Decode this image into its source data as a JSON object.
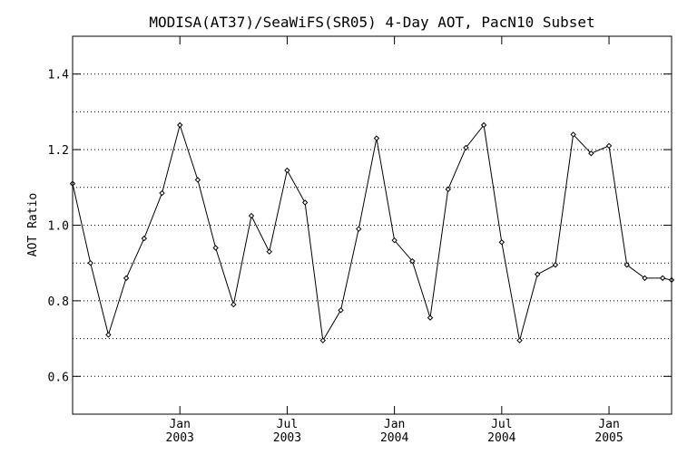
{
  "chart_data": {
    "type": "line",
    "title": "MODISA(AT37)/SeaWiFS(SR05) 4-Day AOT, PacN10 Subset",
    "ylabel": "AOT Ratio",
    "xlabel": "",
    "ylim": [
      0.5,
      1.5
    ],
    "xlim": [
      2002.2,
      2005.55
    ],
    "yticks": [
      {
        "v": 0.6,
        "label": "0.6"
      },
      {
        "v": 0.8,
        "label": "0.8"
      },
      {
        "v": 1.0,
        "label": "1.0"
      },
      {
        "v": 1.2,
        "label": "1.2"
      },
      {
        "v": 1.4,
        "label": "1.4"
      }
    ],
    "grid_values": [
      0.6,
      0.7,
      0.8,
      0.9,
      1.0,
      1.1,
      1.2,
      1.3,
      1.4
    ],
    "xticks": [
      {
        "x": 2002.8,
        "month": "Jan",
        "year": "2003"
      },
      {
        "x": 2003.4,
        "month": "Jul",
        "year": "2003"
      },
      {
        "x": 2004.0,
        "month": "Jan",
        "year": "2004"
      },
      {
        "x": 2004.6,
        "month": "Jul",
        "year": "2004"
      },
      {
        "x": 2005.2,
        "month": "Jan",
        "year": "2005"
      }
    ],
    "grid": true,
    "series": [
      {
        "x": [
          2002.2,
          2002.3,
          2002.4,
          2002.5,
          2002.6,
          2002.7,
          2002.8,
          2002.9,
          2003.0,
          2003.1,
          2003.2,
          2003.3,
          2003.4,
          2003.5,
          2003.6,
          2003.7,
          2003.8,
          2003.9,
          2004.0,
          2004.1,
          2004.2,
          2004.3,
          2004.4,
          2004.5,
          2004.6,
          2004.7,
          2004.8,
          2004.9,
          2005.0,
          2005.1,
          2005.2,
          2005.3,
          2005.4,
          2005.5,
          2005.55
        ],
        "y": [
          1.11,
          0.9,
          0.71,
          0.86,
          0.965,
          1.085,
          1.265,
          1.12,
          0.94,
          0.79,
          1.025,
          0.93,
          1.145,
          1.06,
          0.695,
          0.775,
          0.99,
          1.23,
          0.96,
          0.905,
          0.755,
          1.095,
          1.205,
          1.265,
          0.955,
          0.695,
          0.87,
          0.895,
          1.24,
          1.19,
          1.21,
          0.895,
          0.86,
          0.86,
          0.855
        ]
      }
    ]
  }
}
